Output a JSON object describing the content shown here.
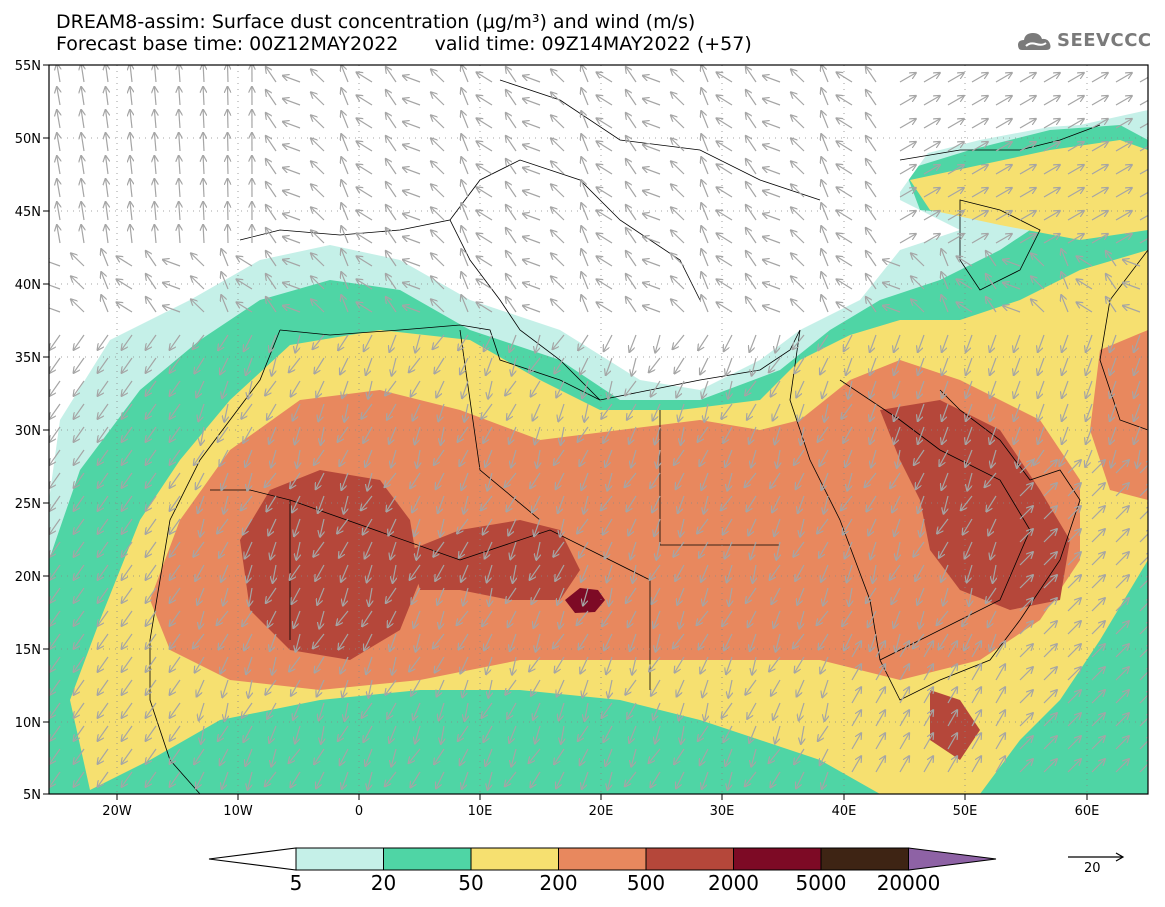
{
  "title_line1": "DREAM8-assim: Surface dust concentration (μg/m³) and wind (m/s)",
  "title_line2": "Forecast base time: 00Z12MAY2022      valid time: 09Z14MAY2022 (+57)",
  "logo_text": "SEEVCCC",
  "lat_labels": [
    "55N",
    "50N",
    "45N",
    "40N",
    "35N",
    "30N",
    "25N",
    "20N",
    "15N",
    "10N",
    "5N"
  ],
  "lon_labels": [
    "20W",
    "10W",
    "0",
    "10E",
    "20E",
    "30E",
    "40E",
    "50E",
    "60E"
  ],
  "colorbar": {
    "levels": [
      "5",
      "20",
      "50",
      "200",
      "500",
      "2000",
      "5000",
      "20000"
    ],
    "colors": [
      "#ffffff",
      "#c5f0e8",
      "#4fd5a5",
      "#f6e070",
      "#e8885e",
      "#b5473a",
      "#7d0a25",
      "#3e2414",
      "#8e62a5"
    ]
  },
  "wind_reference": "20",
  "colors": {
    "bin5_20": "#c5f0e8",
    "bin20_50": "#4fd5a5",
    "bin50_200": "#f6e070",
    "bin200_500": "#e8885e",
    "bin500_2000": "#b5473a",
    "bin2000_5000": "#7d0a25",
    "vector": "#a5a5a5"
  }
}
